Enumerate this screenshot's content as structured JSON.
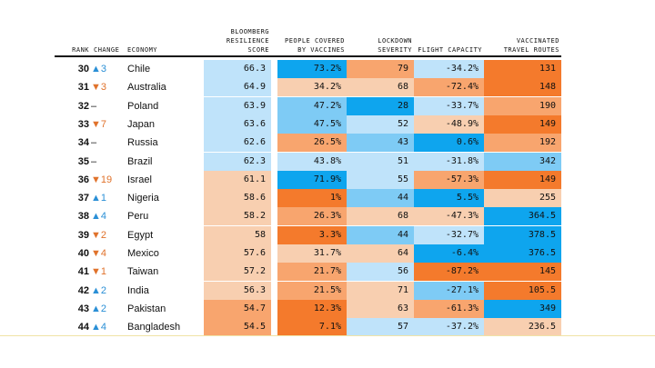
{
  "headers": {
    "rank": "RANK",
    "change": "CHANGE",
    "economy": "ECONOMY",
    "resilience": "BLOOMBERG\nRESILIENCE\nSCORE",
    "vaccines": "PEOPLE COVERED\nBY VACCINES",
    "lockdown": "LOCKDOWN\nSEVERITY",
    "flight": "FLIGHT CAPACITY",
    "travel": "VACCINATED\nTRAVEL ROUTES"
  },
  "colors": {
    "dark_blue": "#0ea5ee",
    "mid_blue": "#7ecbf5",
    "light_blue": "#bfe3fa",
    "light_orange": "#f8cfb0",
    "mid_orange": "#f8a56e",
    "dark_orange": "#f47a2c",
    "up_arrow": "#2a8fd6",
    "down_arrow": "#e0722b"
  },
  "rows": [
    {
      "rank": "30",
      "dir": "up",
      "change": "▲3",
      "economy": "Chile",
      "resilience": "66.3",
      "vaccines": "73.2%",
      "lockdown": "79",
      "flight": "-34.2%",
      "travel": "131",
      "colors": [
        "light_blue",
        "dark_blue",
        "mid_orange",
        "light_blue",
        "dark_orange"
      ]
    },
    {
      "rank": "31",
      "dir": "down",
      "change": "▼3",
      "economy": "Australia",
      "resilience": "64.9",
      "vaccines": "34.2%",
      "lockdown": "68",
      "flight": "-72.4%",
      "travel": "148",
      "colors": [
        "light_blue",
        "light_orange",
        "light_orange",
        "mid_orange",
        "dark_orange"
      ]
    },
    {
      "rank": "32",
      "dir": "flat",
      "change": "–",
      "economy": "Poland",
      "resilience": "63.9",
      "vaccines": "47.2%",
      "lockdown": "28",
      "flight": "-33.7%",
      "travel": "190",
      "colors": [
        "light_blue",
        "mid_blue",
        "dark_blue",
        "light_blue",
        "mid_orange"
      ]
    },
    {
      "rank": "33",
      "dir": "down",
      "change": "▼7",
      "economy": "Japan",
      "resilience": "63.6",
      "vaccines": "47.5%",
      "lockdown": "52",
      "flight": "-48.9%",
      "travel": "149",
      "colors": [
        "light_blue",
        "mid_blue",
        "light_blue",
        "light_orange",
        "dark_orange"
      ]
    },
    {
      "rank": "34",
      "dir": "flat",
      "change": "–",
      "economy": "Russia",
      "resilience": "62.6",
      "vaccines": "26.5%",
      "lockdown": "43",
      "flight": "0.6%",
      "travel": "192",
      "colors": [
        "light_blue",
        "mid_orange",
        "mid_blue",
        "dark_blue",
        "mid_orange"
      ]
    },
    {
      "rank": "35",
      "dir": "flat",
      "change": "–",
      "economy": "Brazil",
      "resilience": "62.3",
      "vaccines": "43.8%",
      "lockdown": "51",
      "flight": "-31.8%",
      "travel": "342",
      "colors": [
        "light_blue",
        "light_blue",
        "light_blue",
        "light_blue",
        "mid_blue"
      ]
    },
    {
      "rank": "36",
      "dir": "down",
      "change": "▼19",
      "economy": "Israel",
      "resilience": "61.1",
      "vaccines": "71.9%",
      "lockdown": "55",
      "flight": "-57.3%",
      "travel": "149",
      "colors": [
        "light_orange",
        "dark_blue",
        "light_blue",
        "mid_orange",
        "dark_orange"
      ]
    },
    {
      "rank": "37",
      "dir": "up",
      "change": "▲1",
      "economy": "Nigeria",
      "resilience": "58.6",
      "vaccines": "1%",
      "lockdown": "44",
      "flight": "5.5%",
      "travel": "255",
      "colors": [
        "light_orange",
        "dark_orange",
        "mid_blue",
        "dark_blue",
        "light_orange"
      ]
    },
    {
      "rank": "38",
      "dir": "up",
      "change": "▲4",
      "economy": "Peru",
      "resilience": "58.2",
      "vaccines": "26.3%",
      "lockdown": "68",
      "flight": "-47.3%",
      "travel": "364.5",
      "colors": [
        "light_orange",
        "mid_orange",
        "light_orange",
        "light_orange",
        "dark_blue"
      ]
    },
    {
      "rank": "39",
      "dir": "down",
      "change": "▼2",
      "economy": "Egypt",
      "resilience": "58",
      "vaccines": "3.3%",
      "lockdown": "44",
      "flight": "-32.7%",
      "travel": "378.5",
      "colors": [
        "light_orange",
        "dark_orange",
        "mid_blue",
        "light_blue",
        "dark_blue"
      ]
    },
    {
      "rank": "40",
      "dir": "down",
      "change": "▼4",
      "economy": "Mexico",
      "resilience": "57.6",
      "vaccines": "31.7%",
      "lockdown": "64",
      "flight": "-6.4%",
      "travel": "376.5",
      "colors": [
        "light_orange",
        "light_orange",
        "light_orange",
        "dark_blue",
        "dark_blue"
      ]
    },
    {
      "rank": "41",
      "dir": "down",
      "change": "▼1",
      "economy": "Taiwan",
      "resilience": "57.2",
      "vaccines": "21.7%",
      "lockdown": "56",
      "flight": "-87.2%",
      "travel": "145",
      "colors": [
        "light_orange",
        "mid_orange",
        "light_blue",
        "dark_orange",
        "dark_orange"
      ]
    },
    {
      "rank": "42",
      "dir": "up",
      "change": "▲2",
      "economy": "India",
      "resilience": "56.3",
      "vaccines": "21.5%",
      "lockdown": "71",
      "flight": "-27.1%",
      "travel": "105.5",
      "colors": [
        "light_orange",
        "mid_orange",
        "light_orange",
        "mid_blue",
        "dark_orange"
      ]
    },
    {
      "rank": "43",
      "dir": "up",
      "change": "▲2",
      "economy": "Pakistan",
      "resilience": "54.7",
      "vaccines": "12.3%",
      "lockdown": "63",
      "flight": "-61.3%",
      "travel": "349",
      "colors": [
        "mid_orange",
        "dark_orange",
        "light_orange",
        "mid_orange",
        "dark_blue"
      ]
    },
    {
      "rank": "44",
      "dir": "up",
      "change": "▲4",
      "economy": "Bangladesh",
      "resilience": "54.5",
      "vaccines": "7.1%",
      "lockdown": "57",
      "flight": "-37.2%",
      "travel": "236.5",
      "colors": [
        "mid_orange",
        "dark_orange",
        "light_blue",
        "light_blue",
        "light_orange"
      ]
    }
  ]
}
